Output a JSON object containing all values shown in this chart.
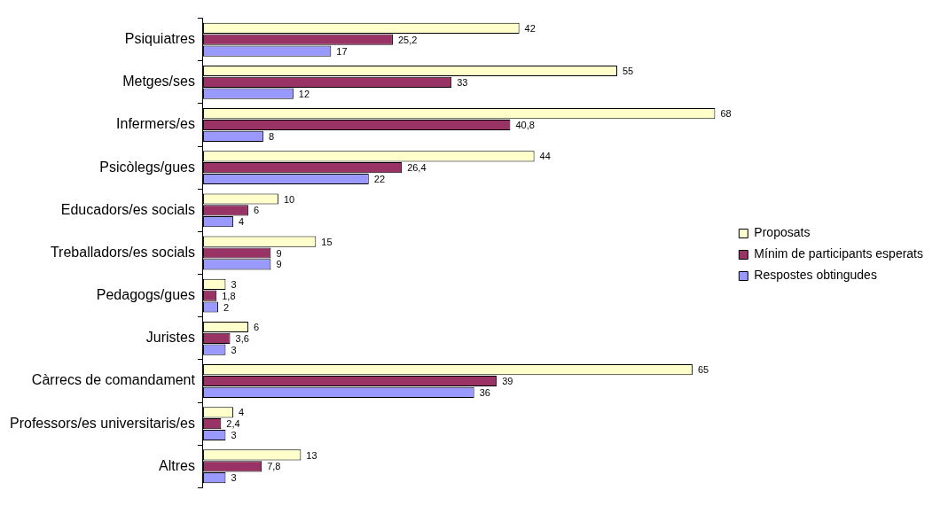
{
  "chart_data": {
    "type": "bar",
    "orientation": "horizontal",
    "categories": [
      "Psiquiatres",
      "Metges/ses",
      "Infermers/es",
      "Psicòlegs/gues",
      "Educadors/es socials",
      "Treballadors/es socials",
      "Pedagogs/gues",
      "Juristes",
      "Càrrecs de comandament",
      "Professors/es universitaris/es",
      "Altres"
    ],
    "series": [
      {
        "name": "Proposats",
        "color": "#ffffcc",
        "values": [
          42,
          55,
          68,
          44,
          10,
          15,
          3,
          6,
          65,
          4,
          13
        ],
        "value_labels": [
          "42",
          "55",
          "68",
          "44",
          "10",
          "15",
          "3",
          "6",
          "65",
          "4",
          "13"
        ]
      },
      {
        "name": "Mínim de participants esperats",
        "color": "#993366",
        "values": [
          25.2,
          33,
          40.8,
          26.4,
          6,
          9,
          1.8,
          3.6,
          39,
          2.4,
          7.8
        ],
        "value_labels": [
          "25,2",
          "33",
          "40,8",
          "26,4",
          "6",
          "9",
          "1,8",
          "3,6",
          "39",
          "2,4",
          "7,8"
        ]
      },
      {
        "name": "Respostes obtingudes",
        "color": "#9999ff",
        "values": [
          17,
          12,
          8,
          22,
          4,
          9,
          2,
          3,
          36,
          3,
          3
        ],
        "value_labels": [
          "17",
          "12",
          "8",
          "22",
          "4",
          "9",
          "2",
          "3",
          "36",
          "3",
          "3"
        ]
      }
    ],
    "legend": "right",
    "tick_labels": "y"
  }
}
